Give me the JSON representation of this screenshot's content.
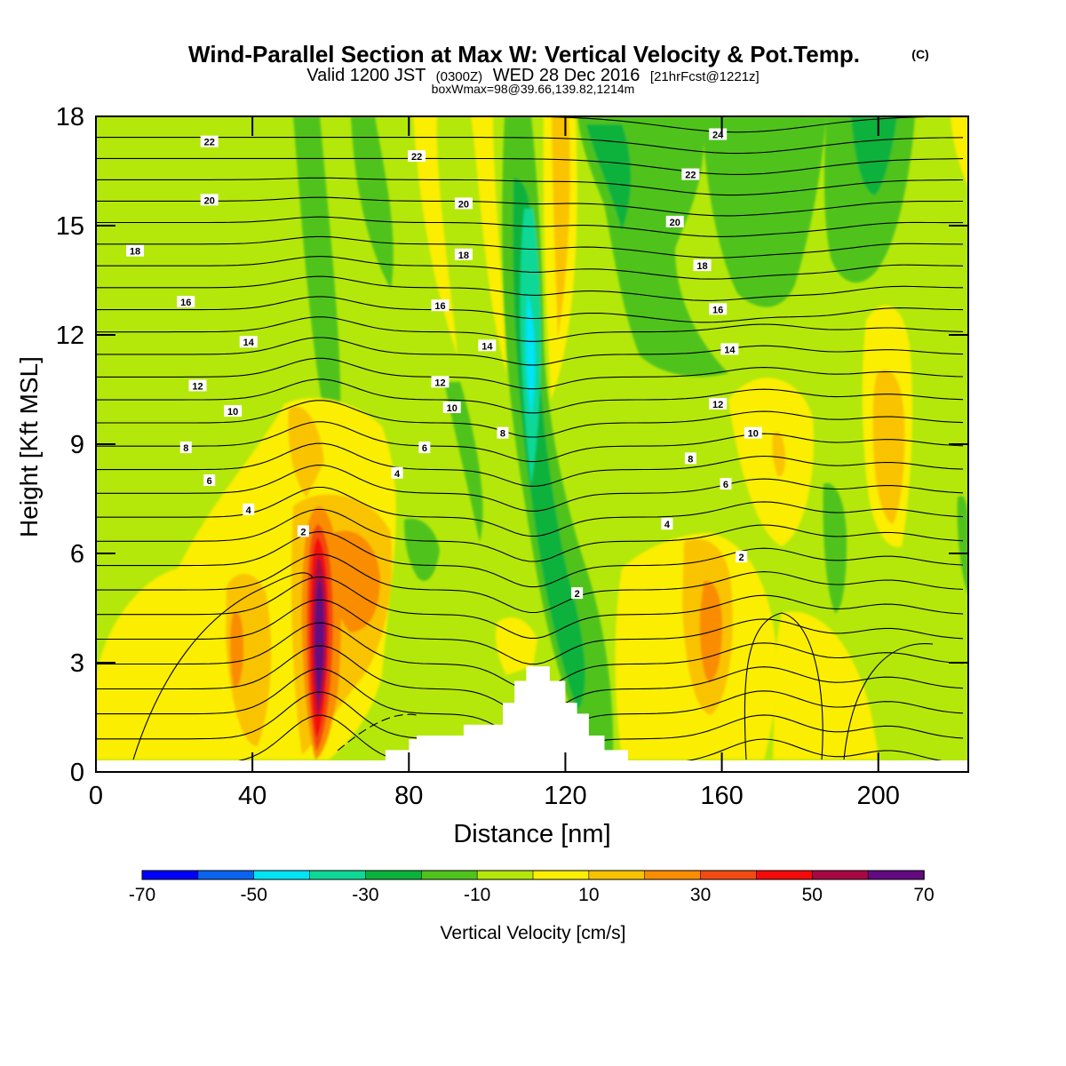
{
  "header": {
    "title": "Wind-Parallel Section at Max W: Vertical Velocity & Pot.Temp.",
    "title_mark": "(C)",
    "valid_prefix": "Valid 1200 JST",
    "valid_small": "(0300Z)",
    "valid_date": "WED 28 Dec 2016",
    "valid_fcst": "[21hrFcst@1221z]",
    "subinfo": "boxWmax=98@39.66,139.82,1214m"
  },
  "chart_data": {
    "type": "heatmap",
    "xlabel": "Distance [nm]",
    "ylabel": "Height [Kft MSL]",
    "xlim": [
      0,
      223
    ],
    "ylim": [
      0,
      18
    ],
    "x_ticks": [
      0,
      40,
      80,
      120,
      160,
      200
    ],
    "y_ticks": [
      0,
      3,
      6,
      9,
      12,
      15,
      18
    ],
    "colorbar": {
      "label": "Vertical Velocity [cm/s]",
      "tick_labels": [
        "-70",
        "-50",
        "-30",
        "-10",
        "10",
        "30",
        "50",
        "70"
      ],
      "levels": [
        -70,
        -60,
        -50,
        -40,
        -30,
        -20,
        -10,
        0,
        10,
        20,
        30,
        40,
        50,
        60,
        70
      ],
      "colors": [
        "#0000ff",
        "#0a64f0",
        "#00e4f5",
        "#0fd896",
        "#0ab23c",
        "#4fc31b",
        "#b4e80a",
        "#fbee00",
        "#fac300",
        "#fa8c00",
        "#f24a10",
        "#f50a0a",
        "#a80844",
        "#620a80"
      ]
    },
    "terrain_nm_kft": [
      [
        74,
        0.3
      ],
      [
        74,
        0.6
      ],
      [
        80,
        0.6
      ],
      [
        80,
        0.9
      ],
      [
        82,
        0.9
      ],
      [
        82,
        1.0
      ],
      [
        94,
        1.0
      ],
      [
        94,
        1.3
      ],
      [
        104,
        1.3
      ],
      [
        104,
        1.9
      ],
      [
        107,
        1.9
      ],
      [
        107,
        2.5
      ],
      [
        110,
        2.5
      ],
      [
        110,
        2.9
      ],
      [
        116,
        2.9
      ],
      [
        116,
        2.5
      ],
      [
        120,
        2.5
      ],
      [
        120,
        1.9
      ],
      [
        123,
        1.9
      ],
      [
        123,
        1.6
      ],
      [
        126,
        1.6
      ],
      [
        126,
        1.0
      ],
      [
        130,
        1.0
      ],
      [
        130,
        0.6
      ],
      [
        136,
        0.6
      ],
      [
        136,
        0.3
      ]
    ],
    "velocity_cells_cm_s": [
      {
        "x": 58,
        "y": 4.0,
        "max": 70,
        "note": "primary updraft"
      },
      {
        "x": 68,
        "y": 5.5,
        "max": 30
      },
      {
        "x": 38,
        "y": 4.0,
        "max": 20
      },
      {
        "x": 112,
        "y": 11.5,
        "min": -40,
        "note": "primary downdraft"
      },
      {
        "x": 120,
        "y": 14.0,
        "max": 20
      },
      {
        "x": 158,
        "y": 4.0,
        "max": 30
      },
      {
        "x": 205,
        "y": 9.0,
        "max": 20
      },
      {
        "x": 175,
        "y": 8.5,
        "max": 20
      },
      {
        "x": 60,
        "y": 15.0,
        "min": -20
      },
      {
        "x": 90,
        "y": 16.0,
        "max": 10
      },
      {
        "x": 140,
        "y": 16.0,
        "min": -20
      },
      {
        "x": 195,
        "y": 14.5,
        "min": -20
      }
    ],
    "theta_labels": [
      {
        "text": "22",
        "x": 29,
        "y": 17.3
      },
      {
        "text": "20",
        "x": 29,
        "y": 15.7
      },
      {
        "text": "18",
        "x": 10,
        "y": 14.3
      },
      {
        "text": "16",
        "x": 23,
        "y": 12.9
      },
      {
        "text": "14",
        "x": 39,
        "y": 11.8
      },
      {
        "text": "12",
        "x": 26,
        "y": 10.6
      },
      {
        "text": "10",
        "x": 35,
        "y": 9.9
      },
      {
        "text": "8",
        "x": 23,
        "y": 8.9
      },
      {
        "text": "6",
        "x": 29,
        "y": 8.0
      },
      {
        "text": "4",
        "x": 39,
        "y": 7.2
      },
      {
        "text": "2",
        "x": 53,
        "y": 6.6
      },
      {
        "text": "22",
        "x": 82,
        "y": 16.9
      },
      {
        "text": "20",
        "x": 94,
        "y": 15.6
      },
      {
        "text": "18",
        "x": 94,
        "y": 14.2
      },
      {
        "text": "16",
        "x": 88,
        "y": 12.8
      },
      {
        "text": "14",
        "x": 100,
        "y": 11.7
      },
      {
        "text": "12",
        "x": 88,
        "y": 10.7
      },
      {
        "text": "10",
        "x": 91,
        "y": 10.0
      },
      {
        "text": "8",
        "x": 104,
        "y": 9.3
      },
      {
        "text": "6",
        "x": 84,
        "y": 8.9
      },
      {
        "text": "4",
        "x": 77,
        "y": 8.2
      },
      {
        "text": "2",
        "x": 123,
        "y": 4.9
      },
      {
        "text": "24",
        "x": 159,
        "y": 17.5
      },
      {
        "text": "22",
        "x": 152,
        "y": 16.4
      },
      {
        "text": "20",
        "x": 148,
        "y": 15.1
      },
      {
        "text": "18",
        "x": 155,
        "y": 13.9
      },
      {
        "text": "16",
        "x": 159,
        "y": 12.7
      },
      {
        "text": "14",
        "x": 162,
        "y": 11.6
      },
      {
        "text": "12",
        "x": 159,
        "y": 10.1
      },
      {
        "text": "10",
        "x": 168,
        "y": 9.3
      },
      {
        "text": "8",
        "x": 152,
        "y": 8.6
      },
      {
        "text": "6",
        "x": 161,
        "y": 7.9
      },
      {
        "text": "4",
        "x": 146,
        "y": 6.8
      },
      {
        "text": "2",
        "x": 165,
        "y": 5.9
      }
    ]
  }
}
